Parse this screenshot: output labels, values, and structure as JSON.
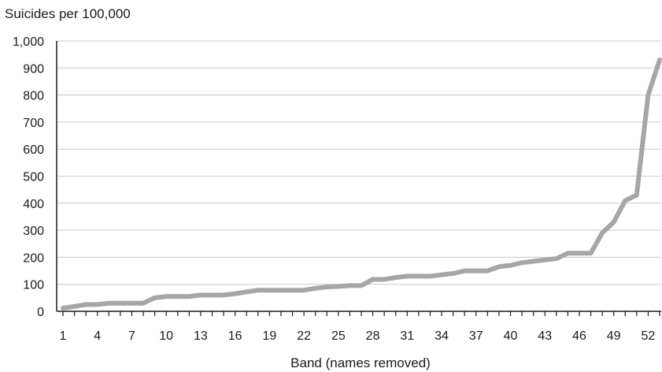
{
  "chart_data": {
    "type": "line",
    "title": "",
    "ylabel": "Suicides per 100,000",
    "xlabel": "Band (names removed)",
    "ylim": [
      0,
      1000
    ],
    "xlim": [
      1,
      53
    ],
    "y_ticks": [
      "0",
      "100",
      "200",
      "300",
      "400",
      "500",
      "600",
      "700",
      "800",
      "900",
      "1,000"
    ],
    "x_ticks": [
      "1",
      "4",
      "7",
      "10",
      "13",
      "16",
      "19",
      "22",
      "25",
      "28",
      "31",
      "34",
      "37",
      "40",
      "43",
      "46",
      "49",
      "52"
    ],
    "grid": "horizontal",
    "series": [
      {
        "color": "#a6a6a6",
        "x": [
          1,
          2,
          3,
          4,
          5,
          6,
          7,
          8,
          9,
          10,
          11,
          12,
          13,
          14,
          15,
          16,
          17,
          18,
          19,
          20,
          21,
          22,
          23,
          24,
          25,
          26,
          27,
          28,
          29,
          30,
          31,
          32,
          33,
          34,
          35,
          36,
          37,
          38,
          39,
          40,
          41,
          42,
          43,
          44,
          45,
          46,
          47,
          48,
          49,
          50,
          51,
          52,
          53
        ],
        "values": [
          12,
          18,
          25,
          25,
          30,
          30,
          30,
          30,
          50,
          55,
          55,
          55,
          60,
          60,
          60,
          65,
          72,
          78,
          78,
          78,
          78,
          78,
          85,
          90,
          92,
          95,
          95,
          118,
          118,
          125,
          130,
          130,
          130,
          135,
          140,
          150,
          150,
          150,
          165,
          170,
          180,
          185,
          190,
          195,
          215,
          215,
          215,
          290,
          330,
          410,
          430,
          800,
          930
        ]
      }
    ]
  }
}
